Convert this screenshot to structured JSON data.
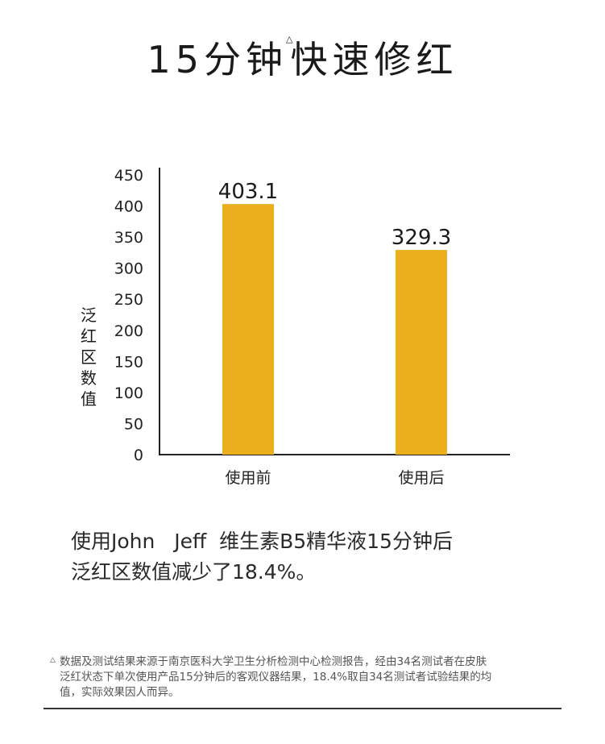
{
  "title": "15分钟快速修红",
  "title_mark": "△",
  "chart_data": {
    "type": "bar",
    "categories": [
      "使用前",
      "使用后"
    ],
    "values": [
      403.1,
      329.3
    ],
    "data_labels": [
      "403.1",
      "329.3"
    ],
    "ylabel": "泛红区数值",
    "ylim": [
      0,
      450
    ],
    "yticks": [
      0,
      50,
      100,
      150,
      200,
      250,
      300,
      350,
      400,
      450
    ],
    "bar_color": "#EBAE1C",
    "grid": false
  },
  "description": {
    "line1": "使用John   Jeff  维生素B5精华液15分钟后",
    "line2": "泛红区数值减少了18.4%。"
  },
  "footnote": {
    "mark": "△",
    "line1": "数据及测试结果来源于南京医科大学卫生分析检测中心检测报告，经由34名测试者在皮肤",
    "line2": "泛红状态下单次使用产品15分钟后的客观仪器结果，18.4%取自34名测试者试验结果的均",
    "line3": "值，实际效果因人而异。"
  }
}
